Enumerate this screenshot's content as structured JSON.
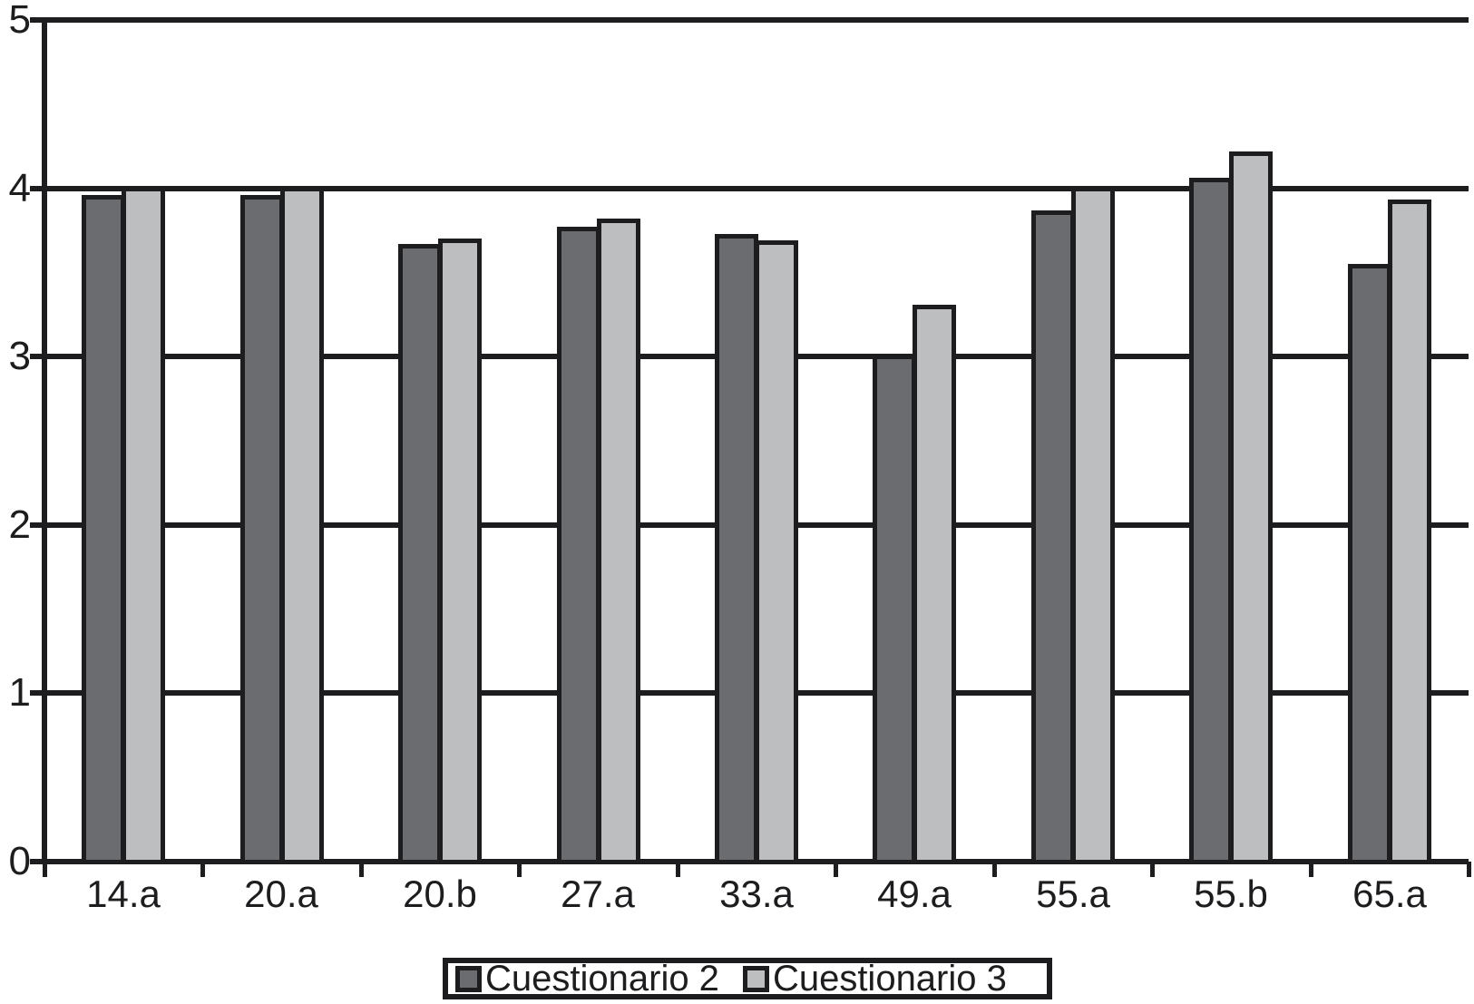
{
  "chart_data": {
    "type": "bar",
    "title": "",
    "xlabel": "",
    "ylabel": "",
    "categories": [
      "14.a",
      "20.a",
      "20.b",
      "27.a",
      "33.a",
      "49.a",
      "55.a",
      "55.b",
      "65.a"
    ],
    "series": [
      {
        "name": "Cuestionario 2",
        "color": "#6b6c70",
        "values": [
          3.95,
          3.95,
          3.66,
          3.76,
          3.72,
          3.0,
          3.86,
          4.05,
          3.54
        ]
      },
      {
        "name": "Cuestionario 3",
        "color": "#bcbec0",
        "values": [
          4.0,
          4.0,
          3.69,
          3.81,
          3.68,
          3.3,
          4.0,
          4.21,
          3.92
        ]
      }
    ],
    "ylim": [
      0,
      5
    ],
    "yticks": [
      0,
      1,
      2,
      3,
      4,
      5
    ],
    "grid": true,
    "legend_position": "bottom-center",
    "line_color": "#1d1d1f",
    "background_color": "#ffffff"
  }
}
